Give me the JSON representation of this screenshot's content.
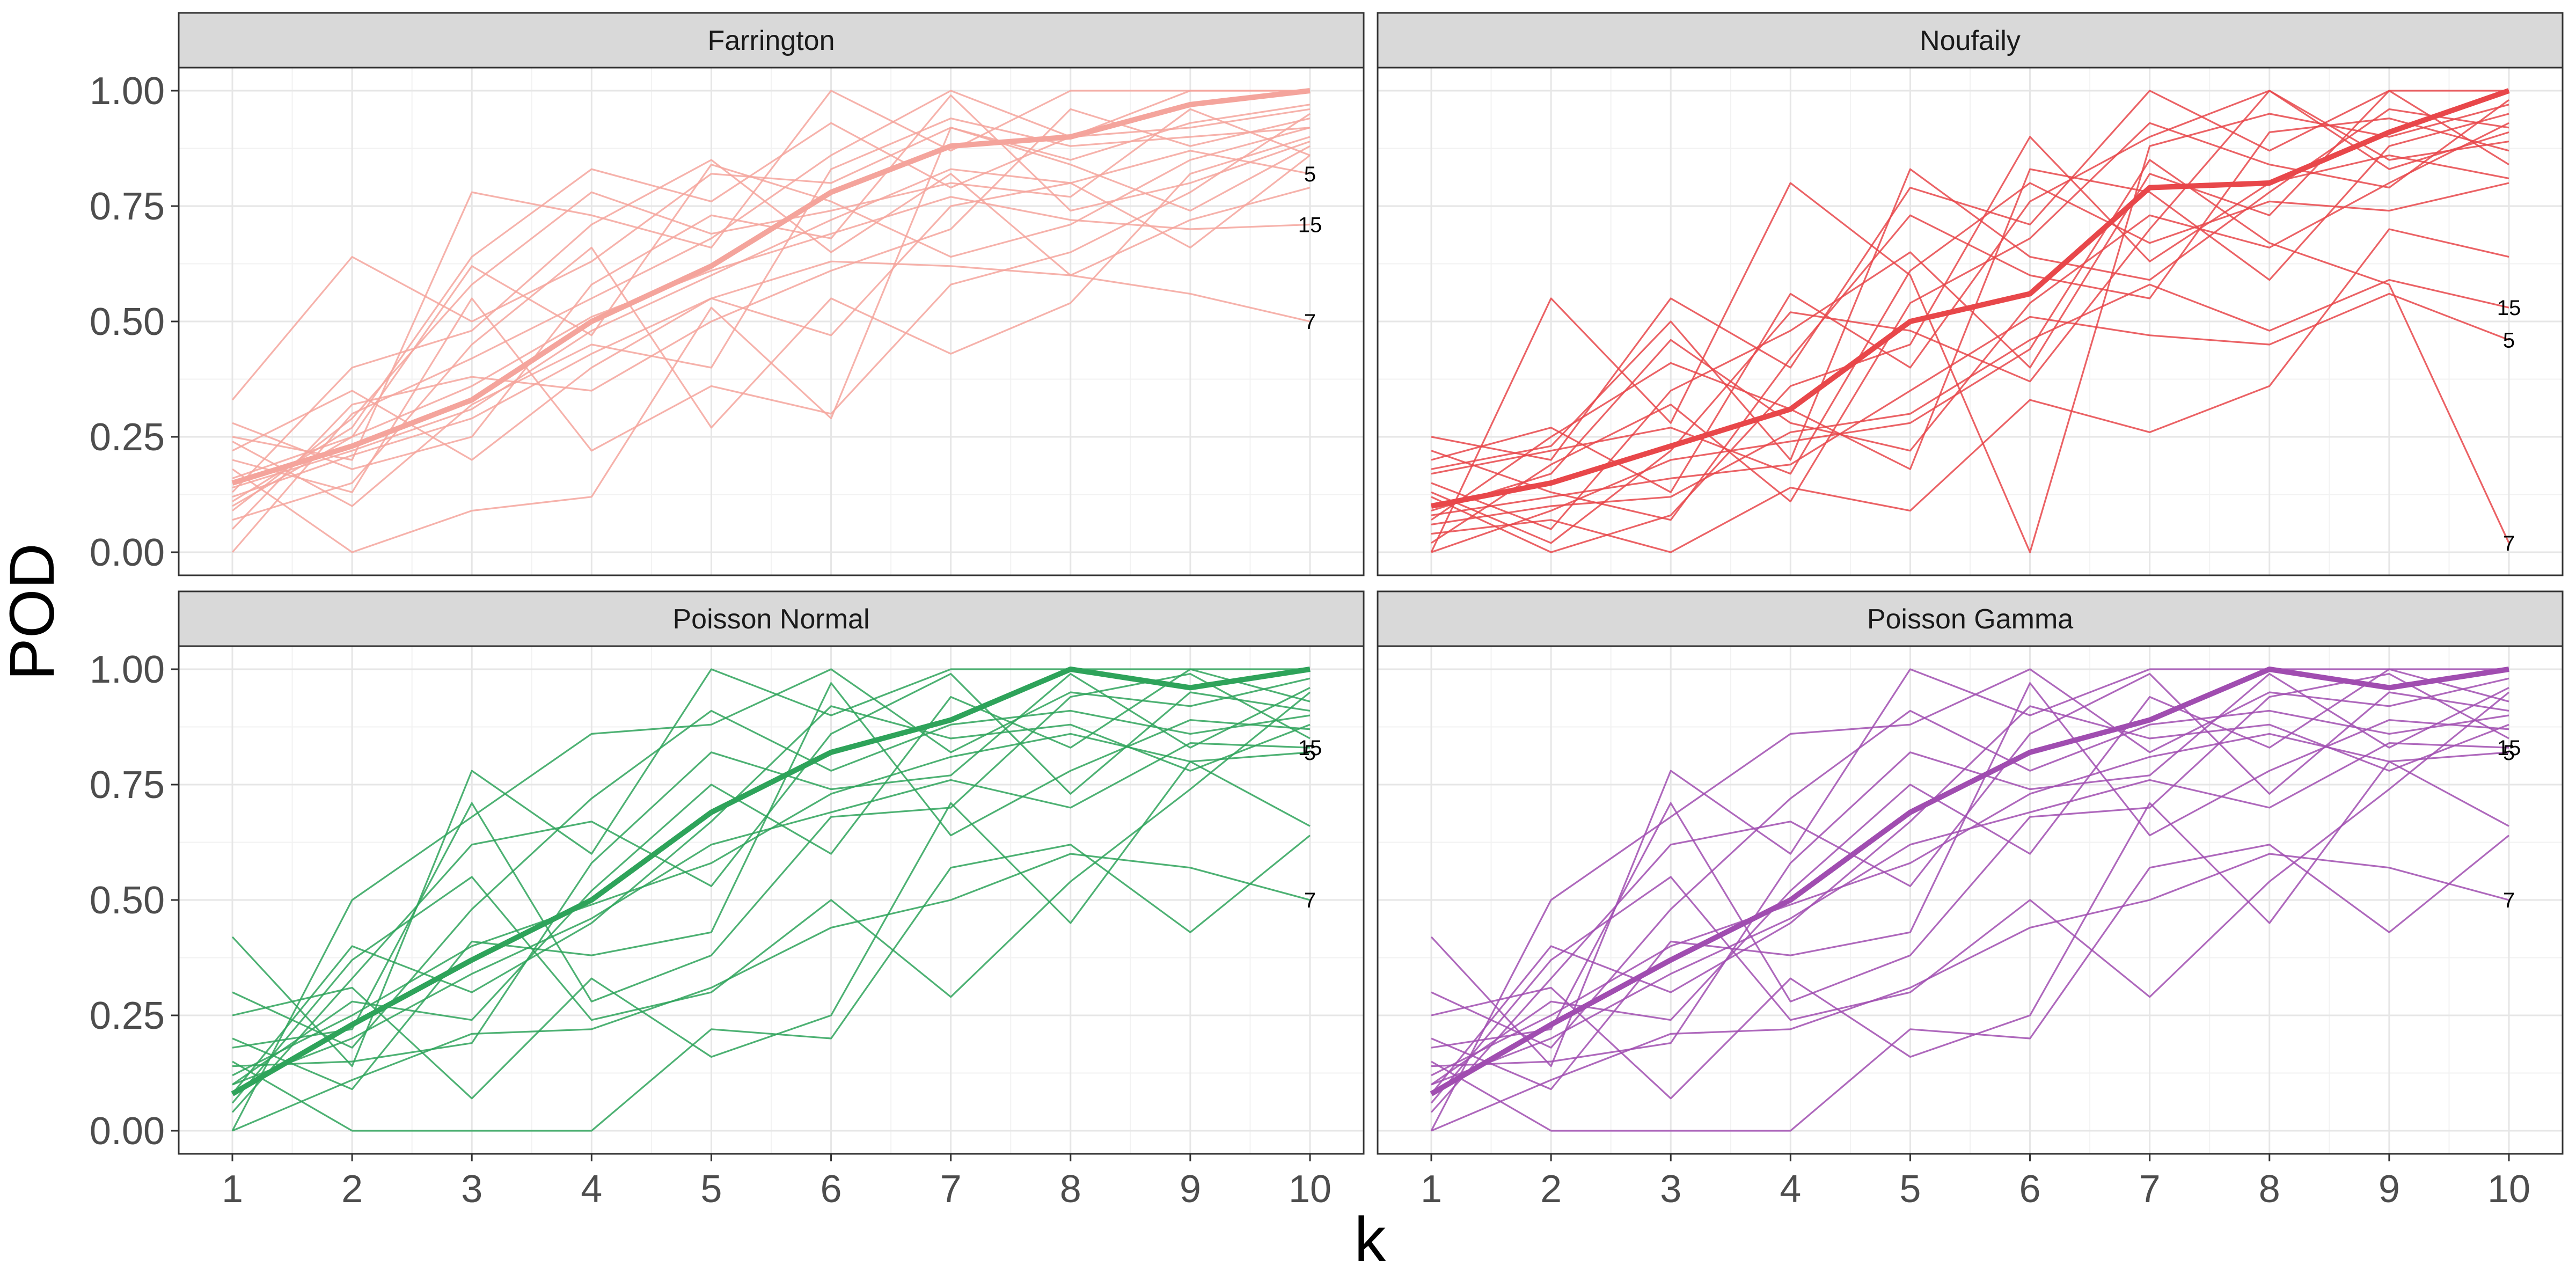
{
  "chart_data": {
    "type": "line",
    "layout": "facet grid 2x2",
    "xlabel": "k",
    "ylabel": "POD",
    "x": [
      1,
      2,
      3,
      4,
      5,
      6,
      7,
      8,
      9,
      10
    ],
    "xlim": [
      1,
      10
    ],
    "ylim": [
      0,
      1
    ],
    "y_ticks": [
      "0.00",
      "0.25",
      "0.50",
      "0.75",
      "1.00"
    ],
    "x_ticks": [
      "1",
      "2",
      "3",
      "4",
      "5",
      "6",
      "7",
      "8",
      "9",
      "10"
    ],
    "grid": true,
    "legend": "none",
    "panels": [
      {
        "title": "Farrington",
        "color": "#f4a49c",
        "series": [
          {
            "name": "mean",
            "values": [
              0.15,
              0.23,
              0.33,
              0.5,
              0.62,
              0.78,
              0.88,
              0.9,
              0.97,
              1.0
            ]
          },
          {
            "name": "5",
            "values": [
              0.14,
              0.22,
              0.31,
              0.48,
              0.6,
              0.72,
              0.83,
              0.8,
              0.87,
              0.82
            ]
          },
          {
            "name": "15",
            "values": [
              0.16,
              0.25,
              0.36,
              0.51,
              0.61,
              0.69,
              0.77,
              0.72,
              0.7,
              0.71
            ]
          },
          {
            "name": "7",
            "values": [
              0.12,
              0.21,
              0.29,
              0.43,
              0.55,
              0.63,
              0.62,
              0.6,
              0.56,
              0.5
            ]
          },
          {
            "values": [
              0.0,
              0.3,
              0.42,
              0.55,
              0.68,
              0.86,
              1.0,
              0.9,
              1.0,
              1.0
            ]
          },
          {
            "values": [
              0.33,
              0.64,
              0.5,
              0.63,
              0.82,
              0.8,
              0.92,
              0.85,
              0.93,
              0.97
            ]
          },
          {
            "values": [
              0.25,
              0.2,
              0.78,
              0.73,
              0.66,
              1.0,
              0.87,
              1.0,
              1.0,
              1.0
            ]
          },
          {
            "values": [
              0.1,
              0.25,
              0.62,
              0.47,
              0.84,
              0.76,
              0.64,
              0.71,
              0.85,
              0.92
            ]
          },
          {
            "values": [
              0.18,
              0.0,
              0.09,
              0.12,
              0.53,
              0.29,
              0.92,
              0.84,
              0.74,
              0.88
            ]
          },
          {
            "values": [
              0.2,
              0.13,
              0.55,
              0.22,
              0.36,
              0.3,
              0.58,
              0.65,
              0.78,
              0.95
            ]
          },
          {
            "values": [
              0.07,
              0.15,
              0.45,
              0.66,
              0.27,
              0.55,
              0.43,
              0.54,
              0.82,
              0.9
            ]
          },
          {
            "values": [
              0.22,
              0.35,
              0.2,
              0.4,
              0.55,
              0.47,
              0.75,
              0.8,
              0.66,
              0.86
            ]
          },
          {
            "values": [
              0.11,
              0.27,
              0.64,
              0.83,
              0.76,
              0.93,
              0.79,
              0.9,
              0.92,
              0.96
            ]
          },
          {
            "values": [
              0.28,
              0.18,
              0.25,
              0.58,
              0.73,
              0.68,
              0.99,
              0.74,
              0.8,
              0.89
            ]
          },
          {
            "values": [
              0.05,
              0.32,
              0.38,
              0.35,
              0.5,
              0.61,
              0.7,
              0.96,
              0.88,
              0.94
            ]
          },
          {
            "values": [
              0.13,
              0.4,
              0.48,
              0.71,
              0.85,
              0.65,
              0.82,
              0.6,
              0.72,
              0.79
            ]
          },
          {
            "values": [
              0.24,
              0.1,
              0.32,
              0.45,
              0.4,
              0.83,
              0.94,
              0.88,
              0.9,
              0.92
            ]
          },
          {
            "values": [
              0.09,
              0.29,
              0.58,
              0.78,
              0.69,
              0.74,
              0.8,
              0.77,
              0.96,
              0.86
            ]
          }
        ]
      },
      {
        "title": "Noufaily",
        "color": "#e8474a",
        "series": [
          {
            "name": "mean",
            "values": [
              0.1,
              0.15,
              0.23,
              0.31,
              0.5,
              0.56,
              0.79,
              0.8,
              0.91,
              1.0
            ]
          },
          {
            "name": "15",
            "values": [
              0.06,
              0.1,
              0.12,
              0.26,
              0.3,
              0.46,
              0.58,
              0.48,
              0.59,
              0.53
            ]
          },
          {
            "name": "5",
            "values": [
              0.08,
              0.12,
              0.16,
              0.19,
              0.35,
              0.51,
              0.47,
              0.45,
              0.56,
              0.46
            ]
          },
          {
            "name": "7",
            "values": [
              0.0,
              0.09,
              0.2,
              0.24,
              0.28,
              0.44,
              0.85,
              0.67,
              0.58,
              0.02
            ]
          },
          {
            "values": [
              0.25,
              0.2,
              0.55,
              0.4,
              0.79,
              0.71,
              1.0,
              0.87,
              1.0,
              1.0
            ]
          },
          {
            "values": [
              0.0,
              0.55,
              0.28,
              0.8,
              0.6,
              0.0,
              0.88,
              0.95,
              0.9,
              0.97
            ]
          },
          {
            "values": [
              0.12,
              0.0,
              0.08,
              0.36,
              0.45,
              0.9,
              0.63,
              0.8,
              0.86,
              0.81
            ]
          },
          {
            "values": [
              0.18,
              0.23,
              0.5,
              0.2,
              0.83,
              0.64,
              0.59,
              0.78,
              0.96,
              0.92
            ]
          },
          {
            "values": [
              0.04,
              0.07,
              0.0,
              0.14,
              0.09,
              0.33,
              0.26,
              0.36,
              0.7,
              0.64
            ]
          },
          {
            "values": [
              0.2,
              0.27,
              0.13,
              0.56,
              0.4,
              0.76,
              0.9,
              1.0,
              0.85,
              0.89
            ]
          },
          {
            "values": [
              0.09,
              0.17,
              0.46,
              0.28,
              0.22,
              0.54,
              0.73,
              0.66,
              0.8,
              0.93
            ]
          },
          {
            "values": [
              0.15,
              0.05,
              0.35,
              0.48,
              0.65,
              0.4,
              0.82,
              0.73,
              1.0,
              0.84
            ]
          },
          {
            "values": [
              0.02,
              0.19,
              0.32,
              0.11,
              0.54,
              0.68,
              0.93,
              0.84,
              0.79,
              0.98
            ]
          },
          {
            "values": [
              0.22,
              0.13,
              0.07,
              0.42,
              0.73,
              0.6,
              0.55,
              0.91,
              0.94,
              0.87
            ]
          },
          {
            "values": [
              0.07,
              0.25,
              0.41,
              0.31,
              0.18,
              0.83,
              0.78,
              0.59,
              0.88,
              0.95
            ]
          },
          {
            "values": [
              0.13,
              0.02,
              0.22,
              0.52,
              0.48,
              0.37,
              0.7,
              1.0,
              0.83,
              0.91
            ]
          },
          {
            "values": [
              0.17,
              0.22,
              0.27,
              0.17,
              0.61,
              0.8,
              0.67,
              0.76,
              0.74,
              0.8
            ]
          }
        ]
      },
      {
        "title": "Poisson Normal",
        "color": "#2ea35a",
        "series": [
          {
            "name": "mean",
            "values": [
              0.08,
              0.23,
              0.37,
              0.5,
              0.69,
              0.82,
              0.89,
              1.0,
              0.96,
              1.0
            ]
          },
          {
            "name": "15",
            "values": [
              0.1,
              0.2,
              0.34,
              0.46,
              0.62,
              0.69,
              0.76,
              0.7,
              0.84,
              0.83
            ]
          },
          {
            "name": "5",
            "values": [
              0.12,
              0.25,
              0.4,
              0.49,
              0.58,
              0.73,
              0.81,
              0.86,
              0.8,
              0.82
            ]
          },
          {
            "name": "7",
            "values": [
              0.0,
              0.11,
              0.21,
              0.22,
              0.31,
              0.44,
              0.5,
              0.6,
              0.57,
              0.5
            ]
          },
          {
            "values": [
              0.42,
              0.14,
              0.78,
              0.6,
              1.0,
              0.9,
              1.0,
              1.0,
              1.0,
              1.0
            ]
          },
          {
            "values": [
              0.0,
              0.5,
              0.68,
              0.86,
              0.88,
              1.0,
              0.82,
              0.95,
              0.92,
              0.98
            ]
          },
          {
            "values": [
              0.25,
              0.31,
              0.07,
              0.33,
              0.16,
              0.25,
              0.71,
              0.45,
              0.8,
              0.66
            ]
          },
          {
            "values": [
              0.15,
              0.0,
              0.0,
              0.0,
              0.22,
              0.2,
              0.57,
              0.62,
              0.43,
              0.64
            ]
          },
          {
            "values": [
              0.06,
              0.37,
              0.55,
              0.24,
              0.3,
              0.5,
              0.29,
              0.54,
              0.74,
              0.95
            ]
          },
          {
            "values": [
              0.3,
              0.18,
              0.48,
              0.72,
              0.91,
              0.78,
              0.88,
              0.91,
              0.86,
              0.9
            ]
          },
          {
            "values": [
              0.1,
              0.28,
              0.24,
              0.52,
              0.75,
              0.6,
              0.94,
              0.83,
              1.0,
              0.93
            ]
          },
          {
            "values": [
              0.2,
              0.09,
              0.41,
              0.38,
              0.43,
              0.97,
              0.64,
              0.78,
              0.89,
              0.87
            ]
          },
          {
            "values": [
              0.04,
              0.33,
              0.62,
              0.67,
              0.53,
              0.86,
              0.99,
              0.73,
              0.95,
              0.91
            ]
          },
          {
            "values": [
              0.14,
              0.15,
              0.19,
              0.58,
              0.82,
              0.74,
              0.77,
              0.99,
              0.83,
              0.96
            ]
          },
          {
            "values": [
              0.08,
              0.4,
              0.3,
              0.45,
              0.67,
              0.92,
              0.85,
              0.88,
              0.78,
              0.88
            ]
          },
          {
            "values": [
              0.18,
              0.22,
              0.71,
              0.28,
              0.38,
              0.68,
              0.7,
              0.94,
              0.99,
              0.85
            ]
          }
        ]
      },
      {
        "title": "Poisson Gamma",
        "color": "#a04db0",
        "series": [
          {
            "name": "mean",
            "values": [
              0.08,
              0.23,
              0.37,
              0.5,
              0.69,
              0.82,
              0.89,
              1.0,
              0.96,
              1.0
            ]
          },
          {
            "name": "15",
            "values": [
              0.1,
              0.2,
              0.34,
              0.46,
              0.62,
              0.69,
              0.76,
              0.7,
              0.84,
              0.83
            ]
          },
          {
            "name": "5",
            "values": [
              0.12,
              0.25,
              0.4,
              0.49,
              0.58,
              0.73,
              0.81,
              0.86,
              0.8,
              0.82
            ]
          },
          {
            "name": "7",
            "values": [
              0.0,
              0.11,
              0.21,
              0.22,
              0.31,
              0.44,
              0.5,
              0.6,
              0.57,
              0.5
            ]
          },
          {
            "values": [
              0.42,
              0.14,
              0.78,
              0.6,
              1.0,
              0.9,
              1.0,
              1.0,
              1.0,
              1.0
            ]
          },
          {
            "values": [
              0.0,
              0.5,
              0.68,
              0.86,
              0.88,
              1.0,
              0.82,
              0.95,
              0.92,
              0.98
            ]
          },
          {
            "values": [
              0.25,
              0.31,
              0.07,
              0.33,
              0.16,
              0.25,
              0.71,
              0.45,
              0.8,
              0.66
            ]
          },
          {
            "values": [
              0.15,
              0.0,
              0.0,
              0.0,
              0.22,
              0.2,
              0.57,
              0.62,
              0.43,
              0.64
            ]
          },
          {
            "values": [
              0.06,
              0.37,
              0.55,
              0.24,
              0.3,
              0.5,
              0.29,
              0.54,
              0.74,
              0.95
            ]
          },
          {
            "values": [
              0.3,
              0.18,
              0.48,
              0.72,
              0.91,
              0.78,
              0.88,
              0.91,
              0.86,
              0.9
            ]
          },
          {
            "values": [
              0.1,
              0.28,
              0.24,
              0.52,
              0.75,
              0.6,
              0.94,
              0.83,
              1.0,
              0.93
            ]
          },
          {
            "values": [
              0.2,
              0.09,
              0.41,
              0.38,
              0.43,
              0.97,
              0.64,
              0.78,
              0.89,
              0.87
            ]
          },
          {
            "values": [
              0.04,
              0.33,
              0.62,
              0.67,
              0.53,
              0.86,
              0.99,
              0.73,
              0.95,
              0.91
            ]
          },
          {
            "values": [
              0.14,
              0.15,
              0.19,
              0.58,
              0.82,
              0.74,
              0.77,
              0.99,
              0.83,
              0.96
            ]
          },
          {
            "values": [
              0.08,
              0.4,
              0.3,
              0.45,
              0.67,
              0.92,
              0.85,
              0.88,
              0.78,
              0.88
            ]
          },
          {
            "values": [
              0.18,
              0.22,
              0.71,
              0.28,
              0.38,
              0.68,
              0.7,
              0.94,
              0.99,
              0.85
            ]
          }
        ]
      }
    ]
  }
}
